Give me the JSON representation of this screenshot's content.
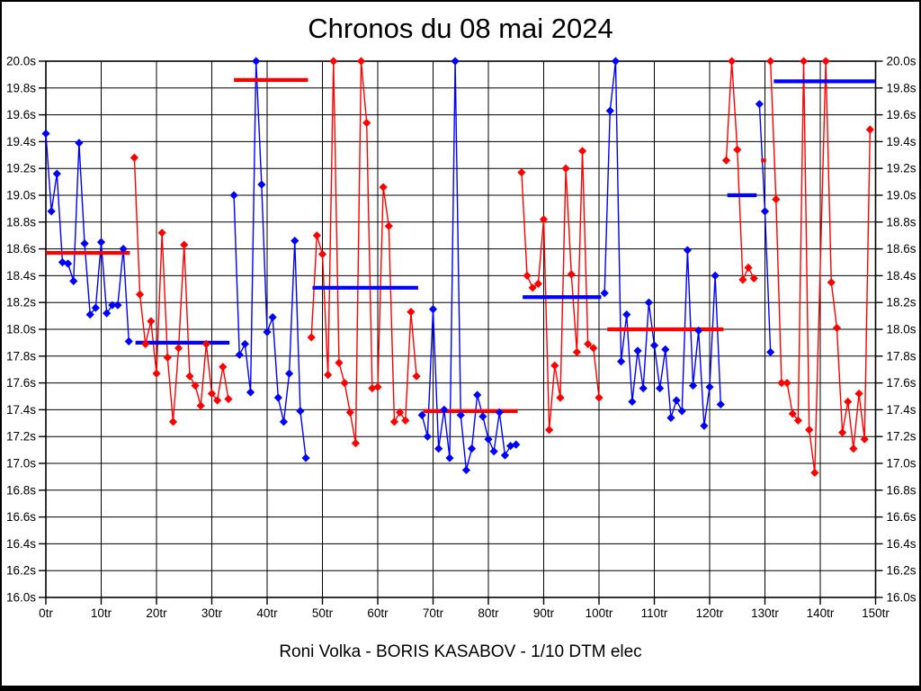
{
  "window": {
    "footer": "Roni Volka - BORIS KASABOV - 1/10 DTM elec"
  },
  "chart_data": {
    "type": "line",
    "title": "Chronos du 08 mai 2024",
    "xlabel": "",
    "ylabel": "",
    "xlim": [
      0,
      150
    ],
    "ylim": [
      16.0,
      20.0
    ],
    "grid": true,
    "legend": "none",
    "marker": "diamond",
    "colors": {
      "blue": "#0000ff",
      "red": "#ff0000",
      "grid": "#000000",
      "frame": "#000000",
      "text": "#000000"
    },
    "x_ticks": [
      {
        "value": 0,
        "label": "0tr"
      },
      {
        "value": 10,
        "label": "10tr"
      },
      {
        "value": 20,
        "label": "20tr"
      },
      {
        "value": 30,
        "label": "30tr"
      },
      {
        "value": 40,
        "label": "40tr"
      },
      {
        "value": 50,
        "label": "50tr"
      },
      {
        "value": 60,
        "label": "60tr"
      },
      {
        "value": 70,
        "label": "70tr"
      },
      {
        "value": 80,
        "label": "80tr"
      },
      {
        "value": 90,
        "label": "90tr"
      },
      {
        "value": 100,
        "label": "100tr"
      },
      {
        "value": 110,
        "label": "110tr"
      },
      {
        "value": 120,
        "label": "120tr"
      },
      {
        "value": 130,
        "label": "130tr"
      },
      {
        "value": 140,
        "label": "140tr"
      },
      {
        "value": 150,
        "label": "150tr"
      }
    ],
    "y_ticks": [
      {
        "value": 20.0,
        "label": "20.0s"
      },
      {
        "value": 19.8,
        "label": "19.8s"
      },
      {
        "value": 19.6,
        "label": "19.6s"
      },
      {
        "value": 19.4,
        "label": "19.4s"
      },
      {
        "value": 19.2,
        "label": "19.2s"
      },
      {
        "value": 19.0,
        "label": "19.0s"
      },
      {
        "value": 18.8,
        "label": "18.8s"
      },
      {
        "value": 18.6,
        "label": "18.6s"
      },
      {
        "value": 18.4,
        "label": "18.4s"
      },
      {
        "value": 18.2,
        "label": "18.2s"
      },
      {
        "value": 18.0,
        "label": "18.0s"
      },
      {
        "value": 17.8,
        "label": "17.8s"
      },
      {
        "value": 17.6,
        "label": "17.6s"
      },
      {
        "value": 17.4,
        "label": "17.4s"
      },
      {
        "value": 17.2,
        "label": "17.2s"
      },
      {
        "value": 17.0,
        "label": "17.0s"
      },
      {
        "value": 16.8,
        "label": "16.8s"
      },
      {
        "value": 16.6,
        "label": "16.6s"
      },
      {
        "value": 16.4,
        "label": "16.4s"
      },
      {
        "value": 16.2,
        "label": "16.2s"
      },
      {
        "value": 16.0,
        "label": "16.0s"
      }
    ],
    "series": [
      {
        "name": "blue-driver",
        "color": "#0000ff",
        "segments": [
          [
            [
              0,
              19.46
            ],
            [
              1,
              18.88
            ],
            [
              2,
              19.16
            ],
            [
              3,
              18.5
            ],
            [
              4,
              18.49
            ],
            [
              5,
              18.36
            ],
            [
              6,
              19.39
            ],
            [
              7,
              18.64
            ],
            [
              8,
              18.11
            ],
            [
              9,
              18.16
            ],
            [
              10,
              18.65
            ],
            [
              11,
              18.12
            ],
            [
              12,
              18.18
            ],
            [
              13,
              18.18
            ],
            [
              14,
              18.6
            ],
            [
              15,
              17.91
            ]
          ],
          [
            [
              34,
              19.0
            ],
            [
              35,
              17.81
            ],
            [
              36,
              17.89
            ],
            [
              37,
              17.53
            ],
            [
              38,
              20.0
            ],
            [
              39,
              19.08
            ],
            [
              40,
              17.98
            ],
            [
              41,
              18.09
            ],
            [
              42,
              17.49
            ],
            [
              43,
              17.31
            ],
            [
              44,
              17.67
            ],
            [
              45,
              18.66
            ],
            [
              46,
              17.39
            ],
            [
              47,
              17.04
            ]
          ],
          [
            [
              68,
              17.36
            ],
            [
              69,
              17.2
            ],
            [
              70,
              18.15
            ],
            [
              71,
              17.11
            ],
            [
              72,
              17.4
            ],
            [
              73,
              17.04
            ],
            [
              74,
              20.0
            ],
            [
              75,
              17.36
            ],
            [
              76,
              16.95
            ],
            [
              77,
              17.11
            ],
            [
              78,
              17.51
            ],
            [
              79,
              17.35
            ],
            [
              80,
              17.18
            ],
            [
              81,
              17.09
            ],
            [
              82,
              17.38
            ],
            [
              83,
              17.06
            ],
            [
              84,
              17.13
            ],
            [
              85,
              17.14
            ]
          ],
          [
            [
              101,
              18.27
            ],
            [
              102,
              19.63
            ],
            [
              103,
              20.0
            ],
            [
              104,
              17.76
            ],
            [
              105,
              18.11
            ],
            [
              106,
              17.46
            ],
            [
              107,
              17.84
            ],
            [
              108,
              17.56
            ],
            [
              109,
              18.2
            ],
            [
              110,
              17.88
            ],
            [
              111,
              17.56
            ],
            [
              112,
              17.85
            ],
            [
              113,
              17.34
            ],
            [
              114,
              17.47
            ],
            [
              115,
              17.39
            ],
            [
              116,
              18.59
            ],
            [
              117,
              17.58
            ],
            [
              118,
              17.99
            ],
            [
              119,
              17.28
            ],
            [
              120,
              17.57
            ],
            [
              121,
              18.4
            ],
            [
              122,
              17.44
            ]
          ],
          [
            [
              129,
              19.68
            ],
            [
              130,
              18.88
            ],
            [
              131,
              17.83
            ]
          ]
        ]
      },
      {
        "name": "red-driver",
        "color": "#ff0000",
        "segments": [
          [
            [
              16,
              19.28
            ],
            [
              17,
              18.26
            ],
            [
              18,
              17.89
            ],
            [
              19,
              18.06
            ],
            [
              20,
              17.67
            ],
            [
              21,
              18.72
            ],
            [
              22,
              17.79
            ],
            [
              23,
              17.31
            ],
            [
              24,
              17.86
            ],
            [
              25,
              18.63
            ],
            [
              26,
              17.65
            ],
            [
              27,
              17.58
            ],
            [
              28,
              17.43
            ],
            [
              29,
              17.89
            ],
            [
              30,
              17.52
            ],
            [
              31,
              17.47
            ],
            [
              32,
              17.72
            ],
            [
              33,
              17.48
            ]
          ],
          [
            [
              48,
              17.94
            ],
            [
              49,
              18.7
            ],
            [
              50,
              18.56
            ],
            [
              51,
              17.66
            ],
            [
              52,
              20.0
            ],
            [
              53,
              17.75
            ],
            [
              54,
              17.6
            ],
            [
              55,
              17.38
            ],
            [
              56,
              17.15
            ],
            [
              57,
              20.0
            ],
            [
              58,
              19.54
            ],
            [
              59,
              17.56
            ],
            [
              60,
              17.57
            ],
            [
              61,
              19.06
            ],
            [
              62,
              18.77
            ],
            [
              63,
              17.31
            ],
            [
              64,
              17.38
            ],
            [
              65,
              17.32
            ],
            [
              66,
              18.13
            ],
            [
              67,
              17.65
            ]
          ],
          [
            [
              86,
              19.17
            ],
            [
              87,
              18.4
            ],
            [
              88,
              18.31
            ],
            [
              89,
              18.34
            ],
            [
              90,
              18.82
            ],
            [
              91,
              17.25
            ],
            [
              92,
              17.73
            ],
            [
              93,
              17.49
            ],
            [
              94,
              19.2
            ],
            [
              95,
              18.41
            ],
            [
              96,
              17.83
            ],
            [
              97,
              19.33
            ],
            [
              98,
              17.89
            ],
            [
              99,
              17.86
            ],
            [
              100,
              17.49
            ]
          ],
          [
            [
              123,
              19.26
            ],
            [
              124,
              20.0
            ],
            [
              125,
              19.34
            ],
            [
              126,
              18.37
            ],
            [
              127,
              18.46
            ],
            [
              128,
              18.38
            ]
          ],
          [
            [
              131,
              20.0
            ],
            [
              132,
              18.97
            ],
            [
              133,
              17.6
            ],
            [
              134,
              17.6
            ],
            [
              135,
              17.37
            ],
            [
              136,
              17.32
            ],
            [
              137,
              20.0
            ],
            [
              138,
              17.25
            ],
            [
              139,
              16.93
            ],
            [
              141,
              20.0
            ],
            [
              142,
              18.35
            ],
            [
              143,
              18.01
            ],
            [
              144,
              17.23
            ],
            [
              145,
              17.46
            ],
            [
              146,
              17.11
            ],
            [
              147,
              17.52
            ],
            [
              148,
              17.18
            ],
            [
              149,
              19.49
            ]
          ]
        ]
      }
    ],
    "average_lines": [
      {
        "color": "#ff0000",
        "value": 18.57,
        "from_lap": 0.0,
        "to_lap": 15.2
      },
      {
        "color": "#0000ff",
        "value": 17.9,
        "from_lap": 16.2,
        "to_lap": 33.2
      },
      {
        "color": "#ff0000",
        "value": 19.86,
        "from_lap": 34.0,
        "to_lap": 47.4
      },
      {
        "color": "#0000ff",
        "value": 18.31,
        "from_lap": 48.2,
        "to_lap": 67.3
      },
      {
        "color": "#ff0000",
        "value": 17.39,
        "from_lap": 68.2,
        "to_lap": 85.3
      },
      {
        "color": "#0000ff",
        "value": 18.24,
        "from_lap": 86.2,
        "to_lap": 100.4
      },
      {
        "color": "#ff0000",
        "value": 18.0,
        "from_lap": 101.5,
        "to_lap": 122.5
      },
      {
        "color": "#0000ff",
        "value": 19.0,
        "from_lap": 123.2,
        "to_lap": 128.5
      },
      {
        "color": "#ff0000",
        "value": 19.26,
        "from_lap": 129.3,
        "to_lap": 130.2
      },
      {
        "color": "#0000ff",
        "value": 19.85,
        "from_lap": 131.6,
        "to_lap": 149.9
      }
    ]
  }
}
